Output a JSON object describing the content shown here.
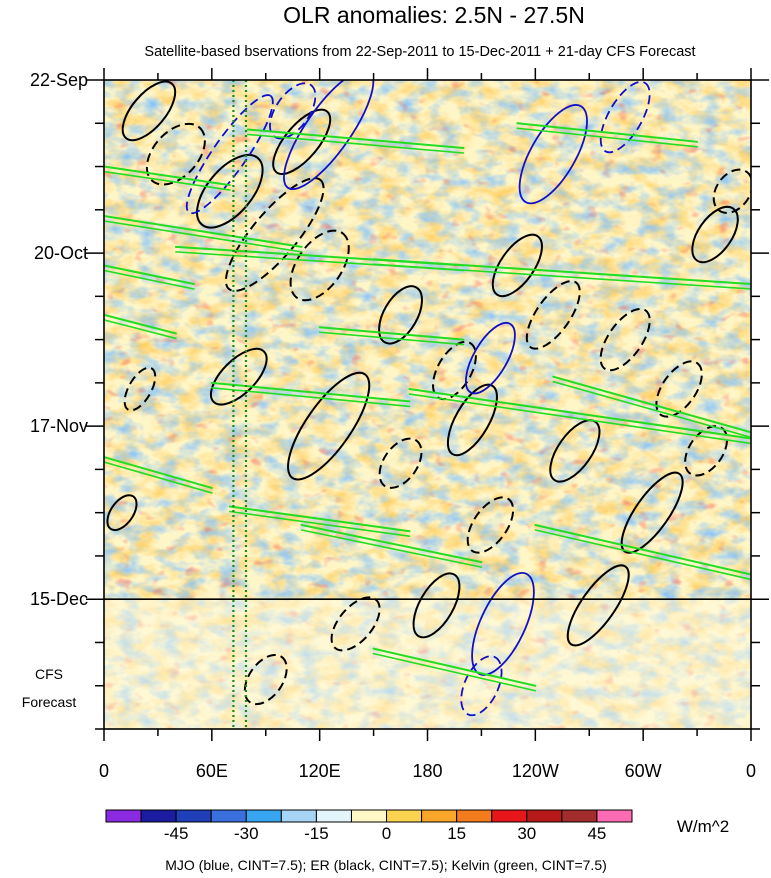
{
  "chart_data": {
    "type": "heatmap",
    "title": "OLR anomalies: 2.5N - 27.5N",
    "subtitle": "Satellite-based bservations from 22-Sep-2011 to 15-Dec-2011 + 21-day CFS Forecast",
    "xlabel": "",
    "ylabel": "",
    "x_ticks": [
      {
        "label": "0",
        "lon": 0
      },
      {
        "label": "60E",
        "lon": 60
      },
      {
        "label": "120E",
        "lon": 120
      },
      {
        "label": "180",
        "lon": 180
      },
      {
        "label": "120W",
        "lon": 240
      },
      {
        "label": "60W",
        "lon": 300
      },
      {
        "label": "0",
        "lon": 360
      }
    ],
    "x_minor_step": 30,
    "xlim": [
      0,
      360
    ],
    "y_ticks": [
      {
        "label": "22-Sep",
        "day": 0
      },
      {
        "label": "20-Oct",
        "day": 28
      },
      {
        "label": "17-Nov",
        "day": 56
      },
      {
        "label": "15-Dec",
        "day": 84
      }
    ],
    "y_minor_step": 7,
    "ylim": [
      0,
      105
    ],
    "forecast_start_day": 84,
    "forecast_label": [
      "CFS",
      "Forecast"
    ],
    "marker_lons": [
      72,
      79
    ],
    "colorbar": {
      "levels": [
        "-45",
        "-30",
        "-15",
        "0",
        "15",
        "30",
        "45"
      ],
      "colors": [
        "#8a2be2",
        "#1c1ca0",
        "#1e3fb8",
        "#3a70dc",
        "#37a5f0",
        "#a6d4f5",
        "#e3f4fb",
        "#fff8c4",
        "#fcd34e",
        "#f9a62a",
        "#f47b1c",
        "#e7161b",
        "#b81a1a",
        "#a32c2c",
        "#ff6ab5"
      ],
      "units": "W/m^2"
    },
    "contour_legend": "MJO (blue, CINT=7.5); ER (black, CINT=7.5); Kelvin (green, CINT=7.5)",
    "series": [
      {
        "name": "MJO",
        "color": "#1010c8"
      },
      {
        "name": "ER",
        "color": "#000000"
      },
      {
        "name": "Kelvin",
        "color": "#22dd22"
      }
    ]
  }
}
